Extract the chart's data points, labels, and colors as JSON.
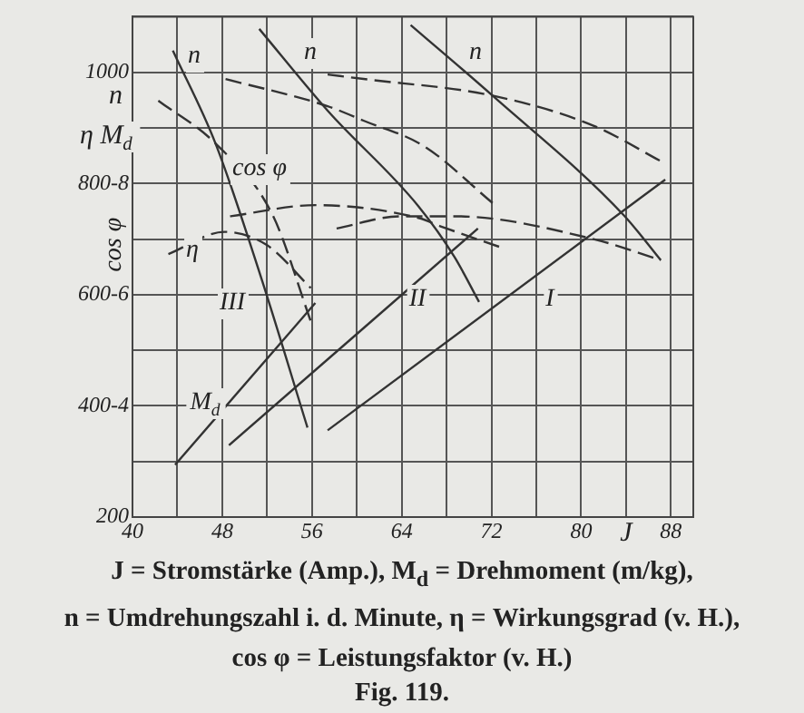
{
  "chart_data": {
    "type": "line",
    "subtitle": "J = Stromstärke (Amp.), M$_{d}$ = Drehmoment (m/kg),\nn = Umdrehungszahl i. d. Minute, η = Wirkungsgrad (v. H.),\ncos φ = Leistungsfaktor (v. H.)",
    "title": "Fig. 119.",
    "xlabel": "J",
    "ylabel": "cos φ",
    "xlim": [
      40,
      90
    ],
    "xticks": [
      40,
      {
        "value": 44,
        "label": null
      },
      48,
      {
        "value": 52,
        "label": null
      },
      56,
      {
        "value": 60,
        "label": null
      },
      64,
      {
        "value": 68,
        "label": null
      },
      72,
      {
        "value": 76,
        "label": null
      },
      80,
      {
        "value": 84,
        "label": null
      },
      88
    ],
    "ylim": [
      200,
      1100
    ],
    "yticks": [
      200,
      {
        "value": 300,
        "label": null
      },
      {
        "value": 400,
        "label": "400-4"
      },
      {
        "value": 500,
        "label": null
      },
      {
        "value": 600,
        "label": "600-6"
      },
      {
        "value": 700,
        "label": null
      },
      {
        "value": 800,
        "label": "800-8"
      },
      {
        "value": 900,
        "label": null
      },
      1000,
      {
        "value": 1100,
        "label": null
      }
    ],
    "grid": true,
    "marker": "none",
    "series": [
      {
        "color": "#333333",
        "line_style": "solid",
        "x": [
          43.6,
          47.4,
          51.4,
          55.6
        ],
        "values": [
          1039,
          872,
          635,
          361
        ]
      },
      {
        "color": "#333333",
        "line_style": "solid",
        "x": [
          51.3,
          57.4,
          65.5,
          68.7,
          70.9
        ],
        "values": [
          1078,
          931,
          759,
          668,
          587
        ]
      },
      {
        "color": "#333333",
        "line_style": "solid",
        "x": [
          64.8,
          72.1,
          83.8,
          87.1
        ],
        "values": [
          1085,
          958,
          743,
          662
        ]
      },
      {
        "color": "#333333",
        "line_style": "dashed",
        "x": [
          57.4,
          60.6,
          72.1,
          81.1,
          87.3
        ],
        "values": [
          996,
          988,
          958,
          904,
          838
        ]
      },
      {
        "color": "#333333",
        "line_style": "dashed",
        "x": [
          48.3,
          57.4,
          60.6,
          66.0,
          72.1
        ],
        "values": [
          988,
          939,
          913,
          867,
          765
        ]
      },
      {
        "color": "#333333",
        "line_style": "dashed",
        "x": [
          42.3,
          47.4,
          52.5,
          55.9
        ],
        "values": [
          949,
          872,
          743,
          552
        ]
      },
      {
        "color": "#333333",
        "line_style": "dashed",
        "x": [
          43.2,
          48.2,
          52.0,
          55.9
        ],
        "values": [
          673,
          713,
          689,
          612
        ]
      },
      {
        "color": "#333333",
        "line_style": "dashed",
        "x": [
          48.7,
          56.3,
          65.5,
          67.6,
          73.0
        ],
        "values": [
          741,
          761,
          738,
          722,
          684
        ]
      },
      {
        "color": "#333333",
        "line_style": "dashed",
        "x": [
          58.2,
          63.9,
          68.7,
          81.1,
          87.1
        ],
        "values": [
          719,
          741,
          741,
          700,
          662
        ]
      },
      {
        "color": "#333333",
        "line_style": "solid",
        "x": [
          43.8,
          56.3
        ],
        "values": [
          294,
          585
        ]
      },
      {
        "color": "#333333",
        "line_style": "solid",
        "x": [
          48.6,
          70.8
        ],
        "values": [
          329,
          719
        ]
      },
      {
        "color": "#333333",
        "line_style": "solid",
        "x": [
          57.4,
          87.5
        ],
        "values": [
          356,
          807
        ]
      }
    ],
    "annotations": [
      "n",
      "η M$_{d}$",
      "n",
      "n",
      "n",
      "cos φ",
      "η",
      "M$_{d}$",
      "III",
      "II",
      "I"
    ]
  }
}
